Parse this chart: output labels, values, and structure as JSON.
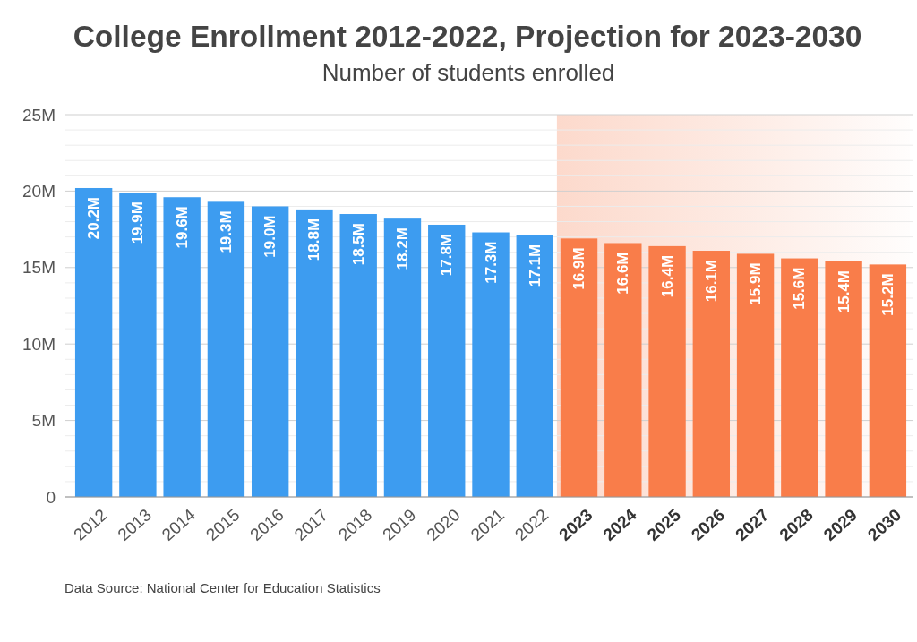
{
  "chart_data": {
    "type": "bar",
    "title": "College Enrollment 2012-2022, Projection for 2023-2030",
    "subtitle": "Number of students enrolled",
    "categories": [
      "2012",
      "2013",
      "2014",
      "2015",
      "2016",
      "2017",
      "2018",
      "2019",
      "2020",
      "2021",
      "2022",
      "2023",
      "2024",
      "2025",
      "2026",
      "2027",
      "2028",
      "2029",
      "2030"
    ],
    "values": [
      20.2,
      19.9,
      19.6,
      19.3,
      19.0,
      18.8,
      18.5,
      18.2,
      17.8,
      17.3,
      17.1,
      16.9,
      16.6,
      16.4,
      16.1,
      15.9,
      15.6,
      15.4,
      15.2
    ],
    "value_labels": [
      "20.2M",
      "19.9M",
      "19.6M",
      "19.3M",
      "19.0M",
      "18.8M",
      "18.5M",
      "18.2M",
      "17.8M",
      "17.3M",
      "17.1M",
      "16.9M",
      "16.6M",
      "16.4M",
      "16.1M",
      "15.9M",
      "15.6M",
      "15.4M",
      "15.2M"
    ],
    "colors": [
      "#3d9cf0",
      "#3d9cf0",
      "#3d9cf0",
      "#3d9cf0",
      "#3d9cf0",
      "#3d9cf0",
      "#3d9cf0",
      "#3d9cf0",
      "#3d9cf0",
      "#3d9cf0",
      "#3d9cf0",
      "#f97d4a",
      "#f97d4a",
      "#f97d4a",
      "#f97d4a",
      "#f97d4a",
      "#f97d4a",
      "#f97d4a",
      "#f97d4a"
    ],
    "ylim": [
      0,
      25
    ],
    "yticks": [
      0,
      {
        "value": 1,
        "label": null
      },
      {
        "value": 2,
        "label": null
      },
      {
        "value": 3,
        "label": null
      },
      {
        "value": 4,
        "label": null
      },
      {
        "value": 5,
        "label": "5M"
      },
      {
        "value": 6,
        "label": null
      },
      {
        "value": 7,
        "label": null
      },
      {
        "value": 8,
        "label": null
      },
      {
        "value": 9,
        "label": null
      },
      {
        "value": 10,
        "label": "10M"
      },
      {
        "value": 11,
        "label": null
      },
      {
        "value": 12,
        "label": null
      },
      {
        "value": 13,
        "label": null
      },
      {
        "value": 14,
        "label": null
      },
      {
        "value": 15,
        "label": "15M"
      },
      {
        "value": 16,
        "label": null
      },
      {
        "value": 17,
        "label": null
      },
      {
        "value": 18,
        "label": null
      },
      {
        "value": 19,
        "label": null
      },
      {
        "value": 20,
        "label": "20M"
      },
      {
        "value": 21,
        "label": null
      },
      {
        "value": 22,
        "label": null
      },
      {
        "value": 23,
        "label": null
      },
      {
        "value": 24,
        "label": null
      },
      {
        "value": 25,
        "label": "25M"
      }
    ],
    "grid": "y",
    "bands": [
      {
        "axis": "x",
        "from": "2023",
        "to": "2030",
        "color": "#fcd5c6"
      }
    ],
    "annotations": [
      "Data Source: National Center for Education Statistics"
    ]
  }
}
